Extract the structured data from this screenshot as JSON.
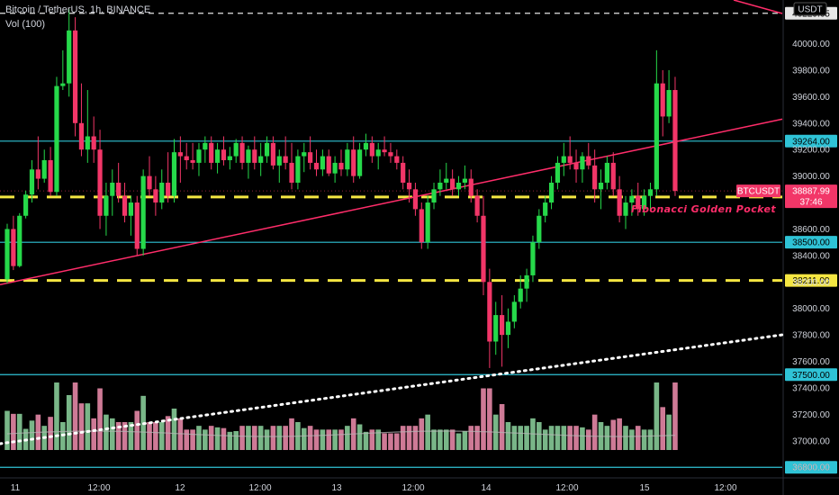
{
  "header": {
    "title": "Bitcoin / TetherUS, 1h, BINANCE",
    "volume_label": "Vol (100)",
    "currency": "USDT"
  },
  "colors": {
    "up": "#26d94a",
    "down": "#f23668",
    "cyan_line": "#2fc3d6",
    "yellow_line": "#f5e642",
    "trend_line": "#ff2d6a",
    "price_tag": "#f23668",
    "volume_up": "#8ed6a0",
    "volume_down": "#f28fb0",
    "volume_ma": "#b7b7b7"
  },
  "annotation": "Fibonacci Golden Pocket",
  "price_tag": {
    "symbol": "BTCUSDT",
    "price": "38887.99",
    "countdown": "37:46"
  },
  "chart_data": {
    "type": "candlestick",
    "title": "Bitcoin / TetherUS, 1h, BINANCE",
    "y_axis": {
      "ticks": [
        "40000.00",
        "39800.00",
        "39600.00",
        "39400.00",
        "39200.00",
        "39000.00",
        "38800.00",
        "38600.00",
        "38400.00",
        "38200.00",
        "38000.00",
        "37800.00",
        "37600.00",
        "37400.00",
        "37200.00",
        "37000.00",
        "36800.00"
      ],
      "range": [
        36720,
        40330
      ]
    },
    "x_axis": {
      "ticks": [
        "11",
        "12:00",
        "12",
        "12:00",
        "13",
        "12:00",
        "14",
        "12:00",
        "15",
        "12:00"
      ]
    },
    "levels": [
      {
        "label": "40229.65",
        "value": 40229.65,
        "style": "white-dashed"
      },
      {
        "label": "39264.00",
        "value": 39264.0,
        "style": "cyan"
      },
      {
        "label": "38841.86",
        "value": 38841.86,
        "style": "yellow-dashed"
      },
      {
        "label": "38500.00",
        "value": 38500.0,
        "style": "cyan"
      },
      {
        "label": "38211.00",
        "value": 38211.0,
        "style": "yellow-dashed"
      },
      {
        "label": "37500.00",
        "value": 37500.0,
        "style": "cyan"
      },
      {
        "label": "36800.00",
        "value": 36800.0,
        "style": "cyan"
      }
    ],
    "candles": [
      [
        38220,
        38640,
        38190,
        38600
      ],
      [
        38600,
        38700,
        38290,
        38320
      ],
      [
        38320,
        38720,
        38310,
        38700
      ],
      [
        38700,
        38890,
        38680,
        38860
      ],
      [
        38860,
        39120,
        38800,
        39050
      ],
      [
        39050,
        39300,
        38900,
        38980
      ],
      [
        38980,
        39200,
        38950,
        39120
      ],
      [
        39120,
        39220,
        38850,
        38880
      ],
      [
        38880,
        39750,
        38850,
        39680
      ],
      [
        39680,
        39950,
        39650,
        39700
      ],
      [
        39700,
        40260,
        39600,
        40100
      ],
      [
        40100,
        40200,
        39300,
        39400
      ],
      [
        39400,
        39700,
        39150,
        39200
      ],
      [
        39200,
        39650,
        39100,
        39300
      ],
      [
        39300,
        39450,
        39100,
        39200
      ],
      [
        39200,
        39350,
        38600,
        38700
      ],
      [
        38700,
        38950,
        38550,
        38850
      ],
      [
        38850,
        39050,
        38700,
        38950
      ],
      [
        38950,
        39100,
        38800,
        38850
      ],
      [
        38850,
        38950,
        38650,
        38700
      ],
      [
        38700,
        38850,
        38550,
        38800
      ],
      [
        38800,
        38850,
        38400,
        38450
      ],
      [
        38450,
        39050,
        38400,
        39000
      ],
      [
        39000,
        39150,
        38850,
        38900
      ],
      [
        38900,
        39000,
        38700,
        38800
      ],
      [
        38800,
        39050,
        38750,
        38950
      ],
      [
        38950,
        39180,
        38800,
        38850
      ],
      [
        38850,
        39280,
        38800,
        39180
      ],
      [
        39180,
        39300,
        38950,
        39150
      ],
      [
        39150,
        39250,
        39050,
        39120
      ],
      [
        39120,
        39250,
        39050,
        39100
      ],
      [
        39100,
        39250,
        39000,
        39200
      ],
      [
        39200,
        39300,
        39100,
        39250
      ],
      [
        39250,
        39300,
        39050,
        39100
      ],
      [
        39100,
        39250,
        39020,
        39200
      ],
      [
        39200,
        39300,
        39080,
        39120
      ],
      [
        39120,
        39220,
        39050,
        39150
      ],
      [
        39150,
        39280,
        39100,
        39250
      ],
      [
        39250,
        39300,
        39050,
        39100
      ],
      [
        39100,
        39230,
        38980,
        39200
      ],
      [
        39200,
        39300,
        39050,
        39100
      ],
      [
        39100,
        39250,
        39000,
        39150
      ],
      [
        39150,
        39300,
        39100,
        39250
      ],
      [
        39250,
        39300,
        39050,
        39080
      ],
      [
        39080,
        39200,
        38950,
        39150
      ],
      [
        39150,
        39300,
        39050,
        39100
      ],
      [
        39100,
        39250,
        38900,
        38950
      ],
      [
        38950,
        39200,
        38900,
        39150
      ],
      [
        39150,
        39250,
        39030,
        39180
      ],
      [
        39180,
        39300,
        39050,
        39100
      ],
      [
        39100,
        39200,
        39000,
        39050
      ],
      [
        39050,
        39200,
        39000,
        39150
      ],
      [
        39150,
        39200,
        39000,
        39020
      ],
      [
        39020,
        39150,
        38950,
        39100
      ],
      [
        39100,
        39200,
        39000,
        39050
      ],
      [
        39050,
        39250,
        39000,
        39200
      ],
      [
        39200,
        39300,
        38950,
        39000
      ],
      [
        39000,
        39250,
        38980,
        39200
      ],
      [
        39200,
        39320,
        39150,
        39250
      ],
      [
        39250,
        39300,
        39100,
        39150
      ],
      [
        39150,
        39250,
        39050,
        39200
      ],
      [
        39200,
        39300,
        39150,
        39180
      ],
      [
        39180,
        39250,
        39100,
        39150
      ],
      [
        39150,
        39200,
        39050,
        39100
      ],
      [
        39100,
        39150,
        38900,
        38950
      ],
      [
        38950,
        39050,
        38800,
        38900
      ],
      [
        38900,
        38950,
        38700,
        38750
      ],
      [
        38750,
        38800,
        38450,
        38500
      ],
      [
        38500,
        38850,
        38450,
        38800
      ],
      [
        38800,
        38950,
        38750,
        38900
      ],
      [
        38900,
        39050,
        38850,
        38950
      ],
      [
        38950,
        39100,
        38900,
        38980
      ],
      [
        38980,
        39050,
        38850,
        38900
      ],
      [
        38900,
        39000,
        38850,
        38950
      ],
      [
        38950,
        39080,
        38900,
        38980
      ],
      [
        38980,
        39050,
        38800,
        38850
      ],
      [
        38850,
        38900,
        38650,
        38700
      ],
      [
        38700,
        38850,
        38100,
        38200
      ],
      [
        38200,
        38300,
        37550,
        37750
      ],
      [
        37750,
        38050,
        37650,
        37950
      ],
      [
        37950,
        38100,
        37560,
        37800
      ],
      [
        37800,
        38000,
        37700,
        37900
      ],
      [
        37900,
        38100,
        37850,
        38050
      ],
      [
        38050,
        38250,
        38000,
        38150
      ],
      [
        38150,
        38300,
        38050,
        38250
      ],
      [
        38250,
        38550,
        38200,
        38500
      ],
      [
        38500,
        38750,
        38450,
        38700
      ],
      [
        38700,
        38850,
        38650,
        38800
      ],
      [
        38800,
        39000,
        38750,
        38950
      ],
      [
        38950,
        39150,
        38900,
        39100
      ],
      [
        39100,
        39250,
        39000,
        39150
      ],
      [
        39150,
        39300,
        39050,
        39100
      ],
      [
        39100,
        39200,
        38950,
        39050
      ],
      [
        39050,
        39180,
        38950,
        39150
      ],
      [
        39150,
        39250,
        39050,
        39080
      ],
      [
        39080,
        39200,
        38800,
        38900
      ],
      [
        38900,
        39050,
        38750,
        38950
      ],
      [
        38950,
        39150,
        38900,
        39100
      ],
      [
        39100,
        39180,
        38850,
        38900
      ],
      [
        38900,
        39000,
        38650,
        38700
      ],
      [
        38700,
        38850,
        38600,
        38800
      ],
      [
        38800,
        38900,
        38700,
        38850
      ],
      [
        38850,
        38950,
        38700,
        38750
      ],
      [
        38750,
        38900,
        38700,
        38850
      ],
      [
        38850,
        38950,
        38750,
        38900
      ],
      [
        38900,
        39950,
        38850,
        39700
      ],
      [
        39700,
        39800,
        39300,
        39450
      ],
      [
        39450,
        39800,
        39400,
        39650
      ],
      [
        39650,
        39750,
        38850,
        38888
      ]
    ]
  }
}
